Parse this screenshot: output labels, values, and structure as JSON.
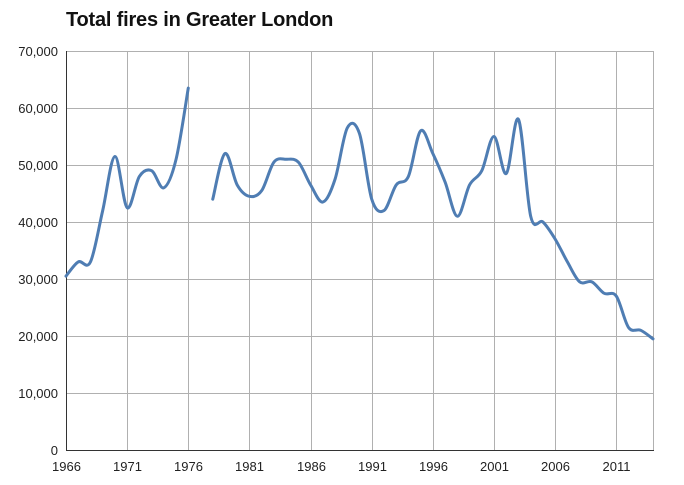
{
  "chart_data": {
    "type": "line",
    "title": "Total fires in Greater London",
    "xlabel": "",
    "ylabel": "",
    "xlim": [
      1966,
      2014
    ],
    "ylim": [
      0,
      70000
    ],
    "x_ticks": [
      1966,
      1971,
      1976,
      1981,
      1986,
      1991,
      1996,
      2001,
      2006,
      2011
    ],
    "y_ticks": [
      0,
      10000,
      20000,
      30000,
      40000,
      50000,
      60000,
      70000
    ],
    "y_tick_labels": [
      "0",
      "10,000",
      "20,000",
      "30,000",
      "40,000",
      "50,000",
      "60,000",
      "70,000"
    ],
    "grid": true,
    "legend": "none",
    "series": [
      {
        "color": "#4f7db3",
        "segments": [
          {
            "x": [
              1966,
              1967,
              1968,
              1969,
              1970,
              1971,
              1972,
              1973,
              1974,
              1975,
              1976
            ],
            "y": [
              30500,
              33000,
              33000,
              42000,
              51500,
              42500,
              48000,
              49000,
              46000,
              51000,
              63500
            ]
          },
          {
            "x": [
              1978,
              1979,
              1980,
              1981,
              1982,
              1983,
              1984,
              1985,
              1986,
              1987,
              1988,
              1989,
              1990,
              1991,
              1992,
              1993,
              1994,
              1995,
              1996,
              1997,
              1998,
              1999,
              2000,
              2001,
              2002,
              2003,
              2004,
              2005,
              2006,
              2007,
              2008,
              2009,
              2010,
              2011,
              2012,
              2013,
              2014
            ],
            "y": [
              44000,
              52000,
              46500,
              44500,
              45500,
              50500,
              51000,
              50500,
              46500,
              43500,
              47500,
              56500,
              55500,
              44000,
              42000,
              46500,
              48000,
              56000,
              52000,
              47000,
              41000,
              46500,
              49000,
              55000,
              48500,
              58000,
              41000,
              40000,
              37000,
              33000,
              29500,
              29500,
              27500,
              27000,
              21500,
              21000,
              19500
            ]
          }
        ]
      }
    ]
  }
}
